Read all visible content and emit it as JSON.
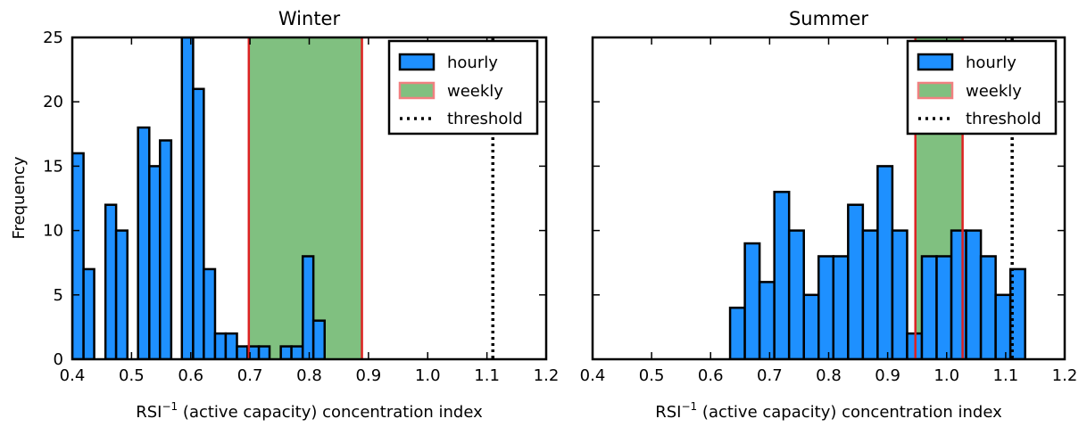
{
  "figure": {
    "ylabel": "Frequency",
    "colors": {
      "hourly": "#1e90ff",
      "weekly_fill": "#80c080",
      "weekly_line": "#dd2222",
      "weekly_legend_edge": "#f08080",
      "threshold": "#000000"
    }
  },
  "chart_data": [
    {
      "type": "bar",
      "title": "Winter",
      "xlabel_main": "RSI",
      "xlabel_sup": "−1",
      "xlabel_rest": " (active capacity) concentration index",
      "ylabel": "Frequency",
      "xlim": [
        0.4,
        1.2
      ],
      "ylim": [
        0,
        25
      ],
      "xticks": [
        "0.4",
        "0.5",
        "0.6",
        "0.7",
        "0.8",
        "0.9",
        "1.0",
        "1.1",
        "1.2"
      ],
      "yticks": [
        "0",
        "5",
        "10",
        "15",
        "20",
        "25"
      ],
      "grid": false,
      "legend_position": "top-right",
      "legend": [
        "hourly",
        "weekly",
        "threshold"
      ],
      "hourly_bins": [
        {
          "x0": 0.4,
          "x1": 0.419,
          "count": 16
        },
        {
          "x0": 0.419,
          "x1": 0.437,
          "count": 7
        },
        {
          "x0": 0.437,
          "x1": 0.456,
          "count": 0
        },
        {
          "x0": 0.456,
          "x1": 0.474,
          "count": 12
        },
        {
          "x0": 0.474,
          "x1": 0.493,
          "count": 10
        },
        {
          "x0": 0.493,
          "x1": 0.511,
          "count": 0
        },
        {
          "x0": 0.511,
          "x1": 0.53,
          "count": 18
        },
        {
          "x0": 0.53,
          "x1": 0.548,
          "count": 15
        },
        {
          "x0": 0.548,
          "x1": 0.567,
          "count": 17
        },
        {
          "x0": 0.567,
          "x1": 0.585,
          "count": 0
        },
        {
          "x0": 0.585,
          "x1": 0.604,
          "count": 25
        },
        {
          "x0": 0.604,
          "x1": 0.622,
          "count": 21
        },
        {
          "x0": 0.622,
          "x1": 0.641,
          "count": 7
        },
        {
          "x0": 0.641,
          "x1": 0.659,
          "count": 2
        },
        {
          "x0": 0.659,
          "x1": 0.678,
          "count": 2
        },
        {
          "x0": 0.678,
          "x1": 0.696,
          "count": 1
        },
        {
          "x0": 0.696,
          "x1": 0.715,
          "count": 1
        },
        {
          "x0": 0.715,
          "x1": 0.733,
          "count": 1
        },
        {
          "x0": 0.733,
          "x1": 0.752,
          "count": 0
        },
        {
          "x0": 0.752,
          "x1": 0.77,
          "count": 1
        },
        {
          "x0": 0.77,
          "x1": 0.789,
          "count": 1
        },
        {
          "x0": 0.789,
          "x1": 0.807,
          "count": 8
        },
        {
          "x0": 0.807,
          "x1": 0.826,
          "count": 3
        }
      ],
      "weekly_range": [
        0.698,
        0.889
      ],
      "threshold": 1.11
    },
    {
      "type": "bar",
      "title": "Summer",
      "xlabel_main": "RSI",
      "xlabel_sup": "−1",
      "xlabel_rest": " (active capacity) concentration index",
      "xlim": [
        0.4,
        1.2
      ],
      "ylim": [
        0,
        25
      ],
      "xticks": [
        "0.4",
        "0.5",
        "0.6",
        "0.7",
        "0.8",
        "0.9",
        "1.0",
        "1.1",
        "1.2"
      ],
      "grid": false,
      "legend_position": "top-right",
      "legend": [
        "hourly",
        "weekly",
        "threshold"
      ],
      "hourly_bins": [
        {
          "x0": 0.633,
          "x1": 0.658,
          "count": 4
        },
        {
          "x0": 0.658,
          "x1": 0.683,
          "count": 9
        },
        {
          "x0": 0.683,
          "x1": 0.708,
          "count": 6
        },
        {
          "x0": 0.708,
          "x1": 0.733,
          "count": 13
        },
        {
          "x0": 0.733,
          "x1": 0.758,
          "count": 10
        },
        {
          "x0": 0.758,
          "x1": 0.783,
          "count": 5
        },
        {
          "x0": 0.783,
          "x1": 0.808,
          "count": 8
        },
        {
          "x0": 0.808,
          "x1": 0.833,
          "count": 8
        },
        {
          "x0": 0.833,
          "x1": 0.858,
          "count": 12
        },
        {
          "x0": 0.858,
          "x1": 0.883,
          "count": 10
        },
        {
          "x0": 0.883,
          "x1": 0.908,
          "count": 15
        },
        {
          "x0": 0.908,
          "x1": 0.933,
          "count": 10
        },
        {
          "x0": 0.933,
          "x1": 0.958,
          "count": 2
        },
        {
          "x0": 0.958,
          "x1": 0.983,
          "count": 8
        },
        {
          "x0": 0.983,
          "x1": 1.008,
          "count": 8
        },
        {
          "x0": 1.008,
          "x1": 1.033,
          "count": 10
        },
        {
          "x0": 1.033,
          "x1": 1.058,
          "count": 10
        },
        {
          "x0": 1.058,
          "x1": 1.083,
          "count": 8
        },
        {
          "x0": 1.083,
          "x1": 1.108,
          "count": 5
        },
        {
          "x0": 1.108,
          "x1": 1.133,
          "count": 7
        }
      ],
      "weekly_range": [
        0.947,
        1.027
      ],
      "threshold": 1.111
    }
  ]
}
